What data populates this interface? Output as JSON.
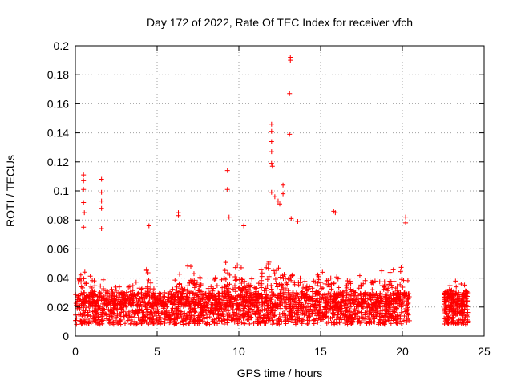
{
  "chart_data": {
    "type": "scatter",
    "title": "Day 172 of 2022, Rate Of TEC Index for receiver vfch",
    "xlabel": "GPS time / hours",
    "ylabel": "ROTI / TECUs",
    "xlim": [
      0,
      25
    ],
    "ylim": [
      0,
      0.2
    ],
    "x_ticks": [
      0,
      5,
      10,
      15,
      20,
      25
    ],
    "x_tick_labels": [
      "0",
      "5",
      "10",
      "15",
      "20",
      "25"
    ],
    "y_ticks": [
      0,
      0.02,
      0.04,
      0.06,
      0.08,
      0.1,
      0.12,
      0.14,
      0.16,
      0.18,
      0.2
    ],
    "y_tick_labels": [
      "0",
      "0.02",
      "0.04",
      "0.06",
      "0.08",
      "0.1",
      "0.12",
      "0.14",
      "0.16",
      "0.18",
      "0.2"
    ],
    "grid": true,
    "marker": "+",
    "color": "#ff0000",
    "series": [
      {
        "name": "",
        "envelope": {
          "note_x_hours": [
            0,
            0.5,
            1,
            1.5,
            2,
            3,
            4,
            4.5,
            5,
            5.5,
            6,
            7,
            8,
            9,
            9.5,
            10,
            11,
            12,
            12.5,
            13,
            13.5,
            14,
            15,
            15.5,
            16,
            17,
            18,
            19,
            20,
            20.4,
            22.6,
            23,
            23.5,
            24
          ],
          "typical_max": [
            0.045,
            0.05,
            0.04,
            0.045,
            0.035,
            0.035,
            0.04,
            0.05,
            0.03,
            0.03,
            0.04,
            0.05,
            0.04,
            0.045,
            0.06,
            0.05,
            0.04,
            0.06,
            0.06,
            0.055,
            0.05,
            0.04,
            0.045,
            0.05,
            0.045,
            0.04,
            0.045,
            0.045,
            0.05,
            0.05,
            0.035,
            0.04,
            0.04,
            0.035
          ]
        },
        "peaks": [
          {
            "x": 0.5,
            "y": 0.111
          },
          {
            "x": 0.5,
            "y": 0.107
          },
          {
            "x": 0.5,
            "y": 0.101
          },
          {
            "x": 0.5,
            "y": 0.092
          },
          {
            "x": 0.55,
            "y": 0.085
          },
          {
            "x": 0.5,
            "y": 0.075
          },
          {
            "x": 1.6,
            "y": 0.108
          },
          {
            "x": 1.6,
            "y": 0.099
          },
          {
            "x": 1.6,
            "y": 0.093
          },
          {
            "x": 1.6,
            "y": 0.088
          },
          {
            "x": 1.6,
            "y": 0.074
          },
          {
            "x": 4.5,
            "y": 0.076
          },
          {
            "x": 6.3,
            "y": 0.085
          },
          {
            "x": 6.3,
            "y": 0.083
          },
          {
            "x": 9.3,
            "y": 0.114
          },
          {
            "x": 9.3,
            "y": 0.101
          },
          {
            "x": 9.4,
            "y": 0.082
          },
          {
            "x": 10.3,
            "y": 0.076
          },
          {
            "x": 12.0,
            "y": 0.146
          },
          {
            "x": 12.0,
            "y": 0.141
          },
          {
            "x": 12.0,
            "y": 0.134
          },
          {
            "x": 12.0,
            "y": 0.127
          },
          {
            "x": 12.0,
            "y": 0.119
          },
          {
            "x": 12.05,
            "y": 0.117
          },
          {
            "x": 12.0,
            "y": 0.099
          },
          {
            "x": 12.2,
            "y": 0.096
          },
          {
            "x": 12.4,
            "y": 0.093
          },
          {
            "x": 12.5,
            "y": 0.091
          },
          {
            "x": 12.7,
            "y": 0.104
          },
          {
            "x": 12.7,
            "y": 0.098
          },
          {
            "x": 13.15,
            "y": 0.192
          },
          {
            "x": 13.15,
            "y": 0.19
          },
          {
            "x": 13.1,
            "y": 0.167
          },
          {
            "x": 13.1,
            "y": 0.139
          },
          {
            "x": 13.2,
            "y": 0.081
          },
          {
            "x": 13.6,
            "y": 0.079
          },
          {
            "x": 15.8,
            "y": 0.086
          },
          {
            "x": 15.9,
            "y": 0.085
          },
          {
            "x": 20.2,
            "y": 0.082
          },
          {
            "x": 20.2,
            "y": 0.078
          }
        ]
      }
    ]
  }
}
